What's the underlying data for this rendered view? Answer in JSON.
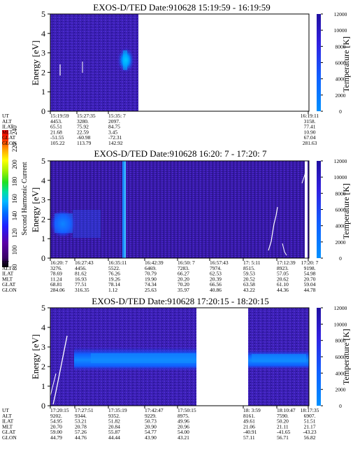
{
  "figure": {
    "colorbar": {
      "label": "Second Harmonic Current",
      "ticks": [
        "80",
        "100",
        "120",
        "140",
        "160",
        "180",
        "200",
        "220",
        "240"
      ],
      "colors": [
        "#000000",
        "#3a0068",
        "#5a00a8",
        "#2020ff",
        "#0070ff",
        "#00b8ff",
        "#00e0a0",
        "#20e020",
        "#a0f000",
        "#ffff00",
        "#ffa000",
        "#ff3000",
        "#ff0000"
      ]
    }
  },
  "panels": [
    {
      "title": "EXOS-D/TED   Date:910628  15:19:59 - 16:19:59",
      "ylabel": "Energy [eV]",
      "rlabel": "Temperature [K]",
      "yticks": [
        "0",
        "1",
        "2",
        "3",
        "4",
        "5"
      ],
      "rticks": [
        "0",
        "2000",
        "4000",
        "6000",
        "8000",
        "10000",
        "12000"
      ],
      "row_labels": [
        "UT",
        "ALT",
        "ILAT",
        "MLT",
        "GLAT",
        "GLON"
      ],
      "columns": [
        {
          "label": "col-1",
          "values": [
            "15:19:59",
            "4453.",
            "65.51",
            "21.68",
            "-51.55",
            "105.22"
          ]
        },
        {
          "label": "col-2",
          "values": [
            "15:27:35",
            "3280.",
            "75.92",
            "22.59",
            "-60.98",
            "113.79"
          ]
        },
        {
          "label": "col-3",
          "values": [
            "15:35: 7",
            "2097.",
            "84.75",
            "3.45",
            "-72.31",
            "142.92"
          ]
        },
        {
          "label": "col-end",
          "values": [
            "16:19:11",
            "3158.",
            "77.41",
            "10.90",
            "67.04",
            "281.63"
          ]
        }
      ]
    },
    {
      "title": "EXOS-D/TED   Date:910628  16:20: 7 - 17:20: 7",
      "ylabel": "Energy [eV]",
      "rlabel": "Temperature [K]",
      "yticks": [
        "0",
        "1",
        "2",
        "3",
        "4",
        "5"
      ],
      "rticks": [
        "0",
        "2000",
        "4000",
        "6000",
        "8000",
        "10000",
        "12000"
      ],
      "row_labels": [
        "UT",
        "ALT",
        "ILAT",
        "MLT",
        "GLAT",
        "GLON"
      ],
      "columns": [
        {
          "label": "col-1",
          "values": [
            "16:20: 7",
            "3276.",
            "78.69",
            "11.24",
            "68.81",
            "284.06"
          ]
        },
        {
          "label": "col-2",
          "values": [
            "16:27:43",
            "4456.",
            "81.62",
            "16.93",
            "77.51",
            "316.35"
          ]
        },
        {
          "label": "col-3",
          "values": [
            "16:35:11",
            "5522.",
            "76.26",
            "19.26",
            "78.14",
            "1.12"
          ]
        },
        {
          "label": "col-4",
          "values": [
            "16:42:39",
            "6469.",
            "70.79",
            "19.90",
            "74.34",
            "25.63"
          ]
        },
        {
          "label": "col-5",
          "values": [
            "16:50: 7",
            "7283.",
            "66.27",
            "20.20",
            "70.20",
            "35.97"
          ]
        },
        {
          "label": "col-6",
          "values": [
            "16:57:43",
            "7974.",
            "62.53",
            "20.39",
            "66.56",
            "40.86"
          ]
        },
        {
          "label": "col-7",
          "values": [
            "17: 5:11",
            "8515.",
            "59.53",
            "20.52",
            "63.58",
            "43.22"
          ]
        },
        {
          "label": "col-8",
          "values": [
            "17:12:39",
            "8923.",
            "57.05",
            "20.62",
            "61.10",
            "44.36"
          ]
        },
        {
          "label": "col-9",
          "values": [
            "17:20: 7",
            "9198.",
            "54.98",
            "20.70",
            "59.04",
            "44.78"
          ]
        }
      ]
    },
    {
      "title": "EXOS-D/TED   Date:910628  17:20:15 - 18:20:15",
      "ylabel": "Energy [eV]",
      "rlabel": "Temperature [K]",
      "yticks": [
        "0",
        "1",
        "2",
        "3",
        "4",
        "5"
      ],
      "rticks": [
        "0",
        "2000",
        "4000",
        "6000",
        "8000",
        "10000",
        "12000"
      ],
      "row_labels": [
        "UT",
        "ALT",
        "ILAT",
        "MLT",
        "GLAT",
        "GLON"
      ],
      "columns": [
        {
          "label": "col-1",
          "values": [
            "17:20:15",
            "9202.",
            "54.95",
            "20.70",
            "59.00",
            "44.79"
          ]
        },
        {
          "label": "col-2",
          "values": [
            "17:27:51",
            "9344.",
            "53.21",
            "20.78",
            "57.26",
            "44.76"
          ]
        },
        {
          "label": "col-3",
          "values": [
            "17:35:19",
            "9352.",
            "51.82",
            "20.84",
            "55.87",
            "44.44"
          ]
        },
        {
          "label": "col-4",
          "values": [
            "17:42:47",
            "9229.",
            "50.73",
            "20.90",
            "54.77",
            "43.90"
          ]
        },
        {
          "label": "col-5",
          "values": [
            "17:50:15",
            "8975.",
            "49.96",
            "20.96",
            "54.00",
            "43.21"
          ]
        },
        {
          "label": "col-6",
          "values": [
            "18: 3:59",
            "8161.",
            "49.61",
            "21.06",
            "-40.91",
            "57.11"
          ]
        },
        {
          "label": "col-7",
          "values": [
            "18:10:47",
            "7590.",
            "50.20",
            "21.11",
            "-41.65",
            "56.71"
          ]
        },
        {
          "label": "col-8",
          "values": [
            "18:17:35",
            "6907.",
            "51.51",
            "21.17",
            "-43.23",
            "56.82"
          ]
        }
      ]
    }
  ],
  "chart_data": [
    {
      "type": "heatmap",
      "title": "EXOS-D/TED   Date:910628  15:19:59 - 16:19:59",
      "xlabel": "UT",
      "ylabel": "Energy [eV]",
      "y2label": "Temperature [K]",
      "xlim": [
        "15:19:59",
        "16:19:59"
      ],
      "ylim": [
        0,
        5
      ],
      "y2lim": [
        0,
        12000
      ],
      "x_ticks": [
        "15:19:59",
        "15:27:35",
        "15:35: 7",
        "16:19:11"
      ],
      "data_coverage": [
        [
          "15:19:59",
          "15:39:00"
        ]
      ],
      "features": [
        {
          "kind": "enhancement",
          "t": [
            "15:34:00",
            "15:37:00"
          ],
          "energy": [
            2.0,
            3.2
          ]
        },
        {
          "kind": "spike",
          "t": [
            "15:21:30",
            "15:21:30"
          ],
          "energy": [
            1.8,
            2.4
          ]
        },
        {
          "kind": "spike",
          "t": [
            "15:26:00",
            "15:26:00"
          ],
          "energy": [
            1.6,
            2.2
          ]
        }
      ]
    },
    {
      "type": "heatmap",
      "title": "EXOS-D/TED   Date:910628  16:20: 7 - 17:20: 7",
      "xlabel": "UT",
      "ylabel": "Energy [eV]",
      "y2label": "Temperature [K]",
      "xlim": [
        "16:20: 7",
        "17:20: 7"
      ],
      "ylim": [
        0,
        5
      ],
      "y2lim": [
        0,
        12000
      ],
      "x_ticks": [
        "16:20: 7",
        "16:27:43",
        "16:35:11",
        "16:42:39",
        "16:50: 7",
        "16:57:43",
        "17: 5:11",
        "17:12:39",
        "17:20: 7"
      ],
      "data_coverage": [
        [
          "16:20: 7",
          "17:17:30"
        ],
        [
          "17:18:30",
          "17:20: 7"
        ]
      ],
      "features": [
        {
          "kind": "enhancement",
          "t": [
            "16:20: 7",
            "16:27:00"
          ],
          "energy": [
            1.0,
            2.5
          ]
        },
        {
          "kind": "enhancement",
          "t": [
            "16:35:00",
            "16:36:30"
          ],
          "energy": [
            0.0,
            5.0
          ]
        },
        {
          "kind": "temperature_trace",
          "t": [
            "17:05:00",
            "17:20: 7"
          ],
          "temperature": [
            0,
            12000
          ]
        }
      ]
    },
    {
      "type": "heatmap",
      "title": "EXOS-D/TED   Date:910628  17:20:15 - 18:20:15",
      "xlabel": "UT",
      "ylabel": "Energy [eV]",
      "y2label": "Temperature [K]",
      "xlim": [
        "17:20:15",
        "18:20:15"
      ],
      "ylim": [
        0,
        5
      ],
      "y2lim": [
        0,
        12000
      ],
      "x_ticks": [
        "17:20:15",
        "17:27:51",
        "17:35:19",
        "17:42:47",
        "17:50:15",
        "18: 3:59",
        "18:10:47",
        "18:17:35"
      ],
      "data_coverage": [
        [
          "17:20:15",
          "17:53:00"
        ],
        [
          "18:01:30",
          "18:20:15"
        ]
      ],
      "features": [
        {
          "kind": "band",
          "t": [
            "17:23:00",
            "17:53:00"
          ],
          "energy": [
            2.0,
            3.2
          ]
        },
        {
          "kind": "band",
          "t": [
            "18:01:30",
            "18:20:15"
          ],
          "energy": [
            1.8,
            2.8
          ]
        },
        {
          "kind": "temperature_trace",
          "t": [
            "17:21:00",
            "17:24:00"
          ],
          "temperature": [
            0,
            9000
          ]
        }
      ]
    }
  ]
}
